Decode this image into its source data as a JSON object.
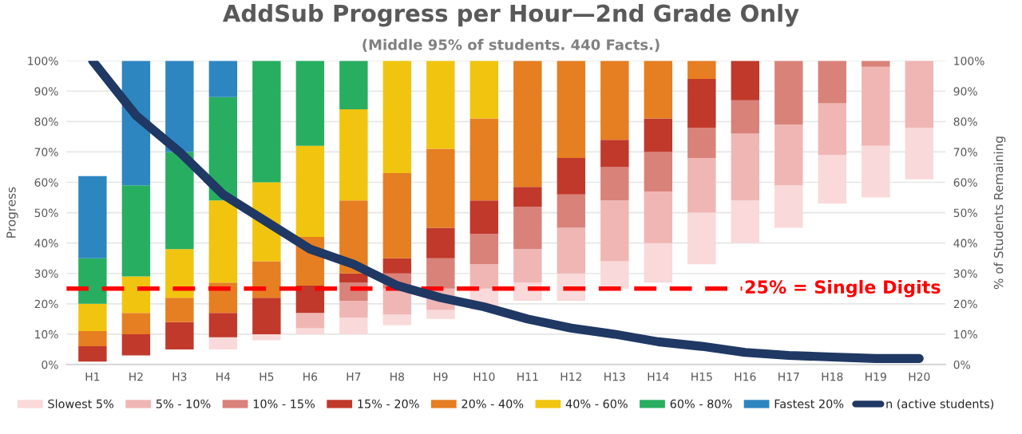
{
  "chart_data": {
    "type": "bar",
    "title": "AddSub Progress per Hour—2nd Grade Only",
    "subtitle": "(Middle 95% of students. 440 Facts.)",
    "ylabel": "Progress",
    "y2label": "% of Students Remaining",
    "categories": [
      "H1",
      "H2",
      "H3",
      "H4",
      "H5",
      "H6",
      "H7",
      "H8",
      "H9",
      "H10",
      "H11",
      "H12",
      "H13",
      "H14",
      "H15",
      "H16",
      "H17",
      "H18",
      "H19",
      "H20"
    ],
    "series": [
      {
        "name": "Slowest 5%",
        "color": "#f9d9d9",
        "base": [
          null,
          null,
          null,
          5,
          8,
          10,
          10,
          13,
          15,
          18,
          21,
          21,
          25,
          27,
          33,
          40,
          45,
          53,
          55,
          61
        ],
        "values": [
          null,
          null,
          null,
          4,
          2,
          2,
          5.5,
          3.5,
          3,
          7,
          6,
          9,
          9,
          13,
          17,
          14,
          14,
          16,
          17,
          17
        ]
      },
      {
        "name": "5% - 10%",
        "color": "#f0b6b4",
        "base": [
          null,
          null,
          null,
          null,
          null,
          12,
          15.5,
          16.5,
          18,
          25,
          27,
          30,
          34,
          40,
          50,
          54,
          59,
          69,
          72,
          78
        ],
        "values": [
          null,
          null,
          null,
          null,
          null,
          5,
          5.5,
          8.5,
          7,
          8,
          11,
          15,
          20,
          17,
          18,
          22,
          20,
          17,
          26,
          22
        ]
      },
      {
        "name": "10% - 15%",
        "color": "#d9827a",
        "base": [
          null,
          null,
          null,
          null,
          null,
          null,
          21,
          25,
          25,
          33,
          38,
          45,
          54,
          57,
          68,
          76,
          79,
          86,
          98,
          null
        ],
        "values": [
          null,
          null,
          null,
          null,
          null,
          null,
          6,
          5,
          10,
          10,
          14,
          11,
          11,
          13,
          10,
          11,
          21,
          14,
          2,
          null
        ]
      },
      {
        "name": "15% - 20%",
        "color": "#c0392b",
        "base": [
          1,
          3,
          5,
          9,
          10,
          17,
          27,
          30,
          35,
          43,
          52,
          56,
          65,
          70,
          78,
          87,
          null,
          null,
          null,
          null
        ],
        "values": [
          5,
          7,
          9,
          8,
          12,
          9,
          3,
          5,
          10,
          11,
          6.5,
          12,
          9,
          11,
          16,
          13,
          null,
          null,
          null,
          null
        ]
      },
      {
        "name": "20% - 40%",
        "color": "#e67e22",
        "base": [
          6,
          10,
          14,
          17,
          22,
          26,
          30,
          35,
          45,
          54,
          58.5,
          68,
          74,
          81,
          94,
          null,
          null,
          null,
          null,
          null
        ],
        "values": [
          5,
          7,
          8,
          10,
          12,
          16,
          24,
          28,
          26,
          27,
          41.5,
          32,
          26,
          19,
          6,
          null,
          null,
          null,
          null,
          null
        ]
      },
      {
        "name": "40% - 60%",
        "color": "#f1c40f",
        "base": [
          11,
          17,
          22,
          27,
          34,
          42,
          54,
          63,
          71,
          81,
          null,
          null,
          null,
          null,
          null,
          null,
          null,
          null,
          null,
          null
        ],
        "values": [
          9,
          12,
          16,
          27,
          26,
          30,
          30,
          37,
          29,
          19,
          null,
          null,
          null,
          null,
          null,
          null,
          null,
          null,
          null,
          null
        ]
      },
      {
        "name": "60% - 80%",
        "color": "#27ae60",
        "base": [
          20,
          29,
          38,
          54,
          60,
          72,
          84,
          null,
          null,
          null,
          null,
          null,
          null,
          null,
          null,
          null,
          null,
          null,
          null,
          null
        ],
        "values": [
          15,
          30,
          32,
          34,
          40,
          28,
          16,
          null,
          null,
          null,
          null,
          null,
          null,
          null,
          null,
          null,
          null,
          null,
          null,
          null
        ]
      },
      {
        "name": "Fastest 20%",
        "color": "#2e86c1",
        "base": [
          35,
          59,
          70,
          88,
          null,
          null,
          null,
          null,
          null,
          null,
          null,
          null,
          null,
          null,
          null,
          null,
          null,
          null,
          null,
          null
        ],
        "values": [
          27,
          41,
          30,
          12,
          null,
          null,
          null,
          null,
          null,
          null,
          null,
          null,
          null,
          null,
          null,
          null,
          null,
          null,
          null,
          null
        ]
      },
      {
        "name": "n (active students)",
        "type": "line",
        "axis": "y2",
        "color": "#1f3864",
        "values": [
          100,
          82,
          70,
          56,
          47,
          38,
          33,
          26,
          22,
          19,
          15,
          12,
          10,
          7.5,
          6,
          4,
          3,
          2.5,
          2,
          2
        ]
      }
    ],
    "ylim": [
      0,
      100
    ],
    "yticks": [
      {
        "value": 0,
        "label": "0%"
      },
      {
        "value": 10,
        "label": "10%"
      },
      {
        "value": 20,
        "label": "20%"
      },
      {
        "value": 30,
        "label": "30%"
      },
      {
        "value": 40,
        "label": "40%"
      },
      {
        "value": 50,
        "label": "50%"
      },
      {
        "value": 60,
        "label": "60%"
      },
      {
        "value": 70,
        "label": "70%"
      },
      {
        "value": 80,
        "label": "80%"
      },
      {
        "value": 90,
        "label": "90%"
      },
      {
        "value": 100,
        "label": "100%"
      }
    ],
    "y2lim": [
      0,
      100
    ],
    "y2ticks": [
      {
        "value": 0,
        "label": "0%"
      },
      {
        "value": 10,
        "label": "10%"
      },
      {
        "value": 20,
        "label": "20%"
      },
      {
        "value": 30,
        "label": "30%"
      },
      {
        "value": 40,
        "label": "40%"
      },
      {
        "value": 50,
        "label": "50%"
      },
      {
        "value": 60,
        "label": "60%"
      },
      {
        "value": 70,
        "label": "70%"
      },
      {
        "value": 80,
        "label": "80%"
      },
      {
        "value": 90,
        "label": "90%"
      },
      {
        "value": 100,
        "label": "100%"
      }
    ],
    "ref_lines": [
      {
        "axis": "y2",
        "value": 25,
        "label": "25% = Single Digits",
        "color": "#ff0000",
        "line_style": "dashed"
      }
    ],
    "grid": "y",
    "legend": "bottom"
  }
}
